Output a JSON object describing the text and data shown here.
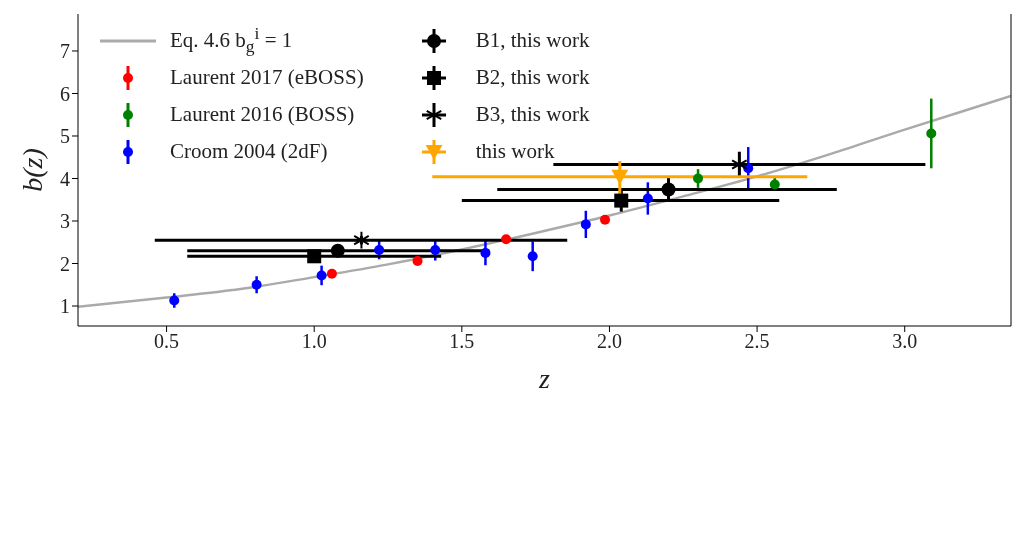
{
  "chart_data": {
    "type": "scatter",
    "xlabel": "z",
    "ylabel": "b(z)",
    "xlim": [
      0.2,
      3.36
    ],
    "ylim": [
      0.53,
      7.87
    ],
    "xticks": [
      {
        "value": 0.5,
        "label": "0.5"
      },
      {
        "value": 1,
        "label": "1.0"
      },
      {
        "value": 1.5,
        "label": "1.5"
      },
      {
        "value": 2,
        "label": "2.0"
      },
      {
        "value": 2.5,
        "label": "2.5"
      },
      {
        "value": 3,
        "label": "3.0"
      }
    ],
    "yticks": [
      1,
      2,
      3,
      4,
      5,
      6,
      7
    ],
    "legend": "top left",
    "series": [
      {
        "name": "Eq. 4.6 b$_{g}$$^{i}$ = 1",
        "type": "line",
        "color": "#aaaaaa",
        "marker": "none",
        "line_style": "solid",
        "x": [
          0.2,
          0.5,
          0.75,
          1.0,
          1.25,
          1.5,
          1.75,
          2.0,
          2.25,
          2.5,
          2.75,
          3.0,
          3.25,
          3.36
        ],
        "values": [
          0.98,
          1.2,
          1.4,
          1.68,
          1.98,
          2.33,
          2.72,
          3.13,
          3.58,
          4.05,
          4.58,
          5.15,
          5.7,
          5.94
        ]
      },
      {
        "name": "Laurent 2017 (eBOSS)",
        "color": "#ff0000",
        "marker": "circle",
        "x": [
          1.06,
          1.35,
          1.65,
          1.985
        ],
        "values": [
          1.76,
          2.06,
          2.57,
          3.03
        ],
        "errors": [
          0.06,
          0.05,
          0.07,
          0.09
        ]
      },
      {
        "name": "Laurent 2016 (BOSS)",
        "color": "#008000",
        "marker": "circle",
        "x": [
          2.3,
          2.56,
          3.09
        ],
        "values": [
          4.0,
          3.86,
          5.06
        ],
        "errors": [
          0.22,
          0.15,
          0.82
        ]
      },
      {
        "name": "Croom 2004 (2dF)",
        "color": "#0000ff",
        "marker": "circle",
        "x": [
          0.526,
          0.805,
          1.025,
          1.22,
          1.41,
          1.58,
          1.74,
          1.92,
          2.13,
          2.47
        ],
        "values": [
          1.13,
          1.5,
          1.72,
          2.32,
          2.32,
          2.25,
          2.17,
          2.92,
          3.53,
          4.24
        ],
        "errors": [
          0.17,
          0.2,
          0.23,
          0.22,
          0.25,
          0.29,
          0.35,
          0.32,
          0.38,
          0.5
        ]
      },
      {
        "name": "B1, this work",
        "color": "#000000",
        "marker": "circle",
        "x": [
          1.08,
          2.2
        ],
        "values": [
          2.3,
          3.74
        ],
        "errors": [
          0.12,
          0.28
        ],
        "xerrors": [
          [
            0.57,
            1.59
          ],
          [
            1.62,
            2.77
          ]
        ]
      },
      {
        "name": "B2, this work",
        "color": "#000000",
        "marker": "square",
        "x": [
          1.0,
          2.04
        ],
        "values": [
          2.17,
          3.48
        ],
        "errors": [
          0.1,
          0.26
        ],
        "xerrors": [
          [
            0.57,
            1.43
          ],
          [
            1.5,
            2.575
          ]
        ]
      },
      {
        "name": "B3, this work",
        "color": "#000000",
        "marker": "cross",
        "x": [
          1.16,
          2.44
        ],
        "values": [
          2.55,
          4.33
        ],
        "errors": [
          0.1,
          0.3
        ],
        "xerrors": [
          [
            0.46,
            1.857
          ],
          [
            1.81,
            3.07
          ]
        ]
      },
      {
        "name": "this work",
        "color": "#ffa500",
        "marker": "triangle",
        "x": [
          2.035
        ],
        "values": [
          4.04
        ],
        "errors": [
          [
            3.59,
            4.41
          ]
        ],
        "xerrors": [
          [
            1.4,
            2.67
          ]
        ]
      }
    ]
  }
}
